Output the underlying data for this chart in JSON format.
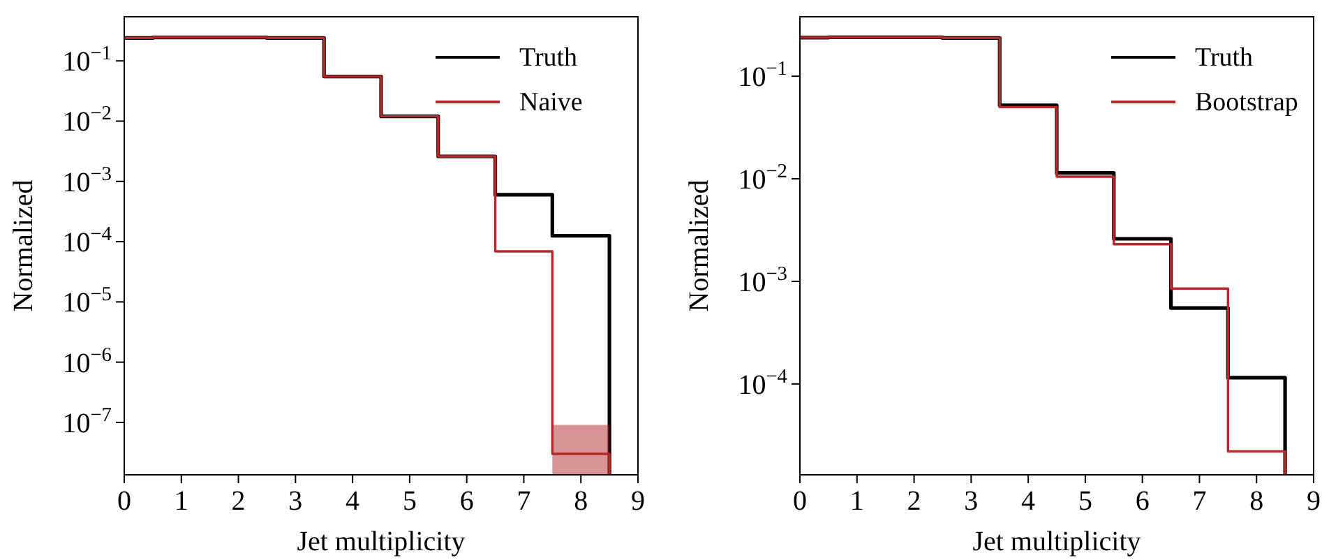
{
  "chart_data": [
    {
      "type": "step",
      "xlabel": "Jet multiplicity",
      "ylabel": "Normalized",
      "x": [
        0,
        0.5,
        1.5,
        2.5,
        3.5,
        4.5,
        5.5,
        6.5,
        7.5,
        8.5
      ],
      "log": "y",
      "xlim": [
        0,
        9
      ],
      "xticks": [
        0,
        1,
        2,
        3,
        4,
        5,
        6,
        7,
        8,
        9
      ],
      "ylim": [
        1.35e-08,
        0.54
      ],
      "yticks": [
        {
          "value": 1e-07,
          "label": "10$^{−7}$"
        },
        {
          "value": 1e-06,
          "label": "10$^{−6}$"
        },
        {
          "value": 1e-05,
          "label": "10$^{−5}$"
        },
        {
          "value": 0.0001,
          "label": "10$^{−4}$"
        },
        {
          "value": 0.001,
          "label": "10$^{−3}$"
        },
        {
          "value": 0.01,
          "label": "10$^{−2}$"
        },
        {
          "value": 0.1,
          "label": "10$^{−1}$"
        }
      ],
      "legend": "top right",
      "grid": false,
      "series": [
        {
          "name": "Truth",
          "color": "#000000",
          "values": [
            0.24,
            0.245,
            0.245,
            0.24,
            0.055,
            0.012,
            0.0026,
            0.0006,
            0.000125,
            0.000125
          ]
        },
        {
          "name": "Naive",
          "color": "#b22a2a",
          "values": [
            0.24,
            0.245,
            0.245,
            0.24,
            0.055,
            0.012,
            0.0026,
            6.9e-05,
            3e-08,
            3e-08
          ],
          "lower": [
            null,
            null,
            null,
            null,
            null,
            null,
            null,
            null,
            1.35e-08,
            1.35e-08
          ],
          "upper": [
            null,
            null,
            null,
            null,
            null,
            null,
            null,
            null,
            9.1e-08,
            9.1e-08
          ]
        }
      ]
    },
    {
      "type": "step",
      "xlabel": "Jet multiplicity",
      "ylabel": "Normalized",
      "x": [
        0,
        0.5,
        1.5,
        2.5,
        3.5,
        4.5,
        5.5,
        6.5,
        7.5,
        8.5
      ],
      "log": "y",
      "xlim": [
        0,
        9
      ],
      "xticks": [
        0,
        1,
        2,
        3,
        4,
        5,
        6,
        7,
        8,
        9
      ],
      "ylim": [
        1.3e-05,
        0.38
      ],
      "yticks": [
        {
          "value": 0.0001,
          "label": "10$^{−4}$"
        },
        {
          "value": 0.001,
          "label": "10$^{−3}$"
        },
        {
          "value": 0.01,
          "label": "10$^{−2}$"
        },
        {
          "value": 0.1,
          "label": "10$^{−1}$"
        }
      ],
      "legend": "top right",
      "grid": false,
      "series": [
        {
          "name": "Truth",
          "color": "#000000",
          "values": [
            0.238,
            0.24,
            0.24,
            0.236,
            0.052,
            0.0114,
            0.0026,
            0.00055,
            0.000115,
            0.000115
          ]
        },
        {
          "name": "Bootstrap",
          "color": "#b22a2a",
          "values": [
            0.238,
            0.24,
            0.24,
            0.236,
            0.05,
            0.0105,
            0.0023,
            0.00085,
            2.2e-05,
            2.2e-05
          ]
        }
      ]
    }
  ]
}
